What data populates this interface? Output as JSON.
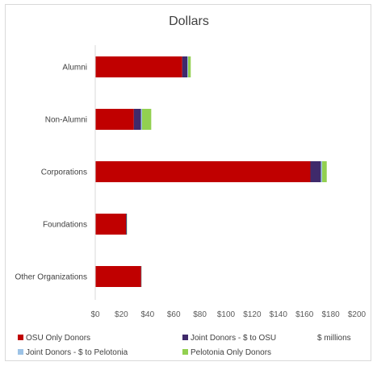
{
  "chart_data": {
    "type": "bar",
    "orientation": "horizontal",
    "stacked": true,
    "title": "Dollars",
    "unit_label": "$ millions",
    "categories": [
      "Alumni",
      "Non-Alumni",
      "Corporations",
      "Foundations",
      "Other Organizations"
    ],
    "series": [
      {
        "name": "OSU Only Donors",
        "color": "#c00000",
        "values": [
          66.5,
          29.5,
          164.5,
          23.5,
          35.0
        ]
      },
      {
        "name": "Joint Donors - $ to OSU",
        "color": "#3f2a6b",
        "values": [
          4.0,
          5.5,
          8.0,
          0.6,
          0.3
        ]
      },
      {
        "name": "Joint Donors - $ to Pelotonia",
        "color": "#9dc3e6",
        "values": [
          0.5,
          0.8,
          1.0,
          0.1,
          0.1
        ]
      },
      {
        "name": "Pelotonia Only Donors",
        "color": "#92d050",
        "values": [
          2.0,
          7.0,
          3.5,
          0.2,
          0.1
        ]
      }
    ],
    "xlim": [
      0,
      200
    ],
    "x_ticks": [
      "$0",
      "$20",
      "$40",
      "$60",
      "$80",
      "$100",
      "$120",
      "$140",
      "$160",
      "$180",
      "$200"
    ],
    "legend_position": "bottom",
    "grid": false
  }
}
